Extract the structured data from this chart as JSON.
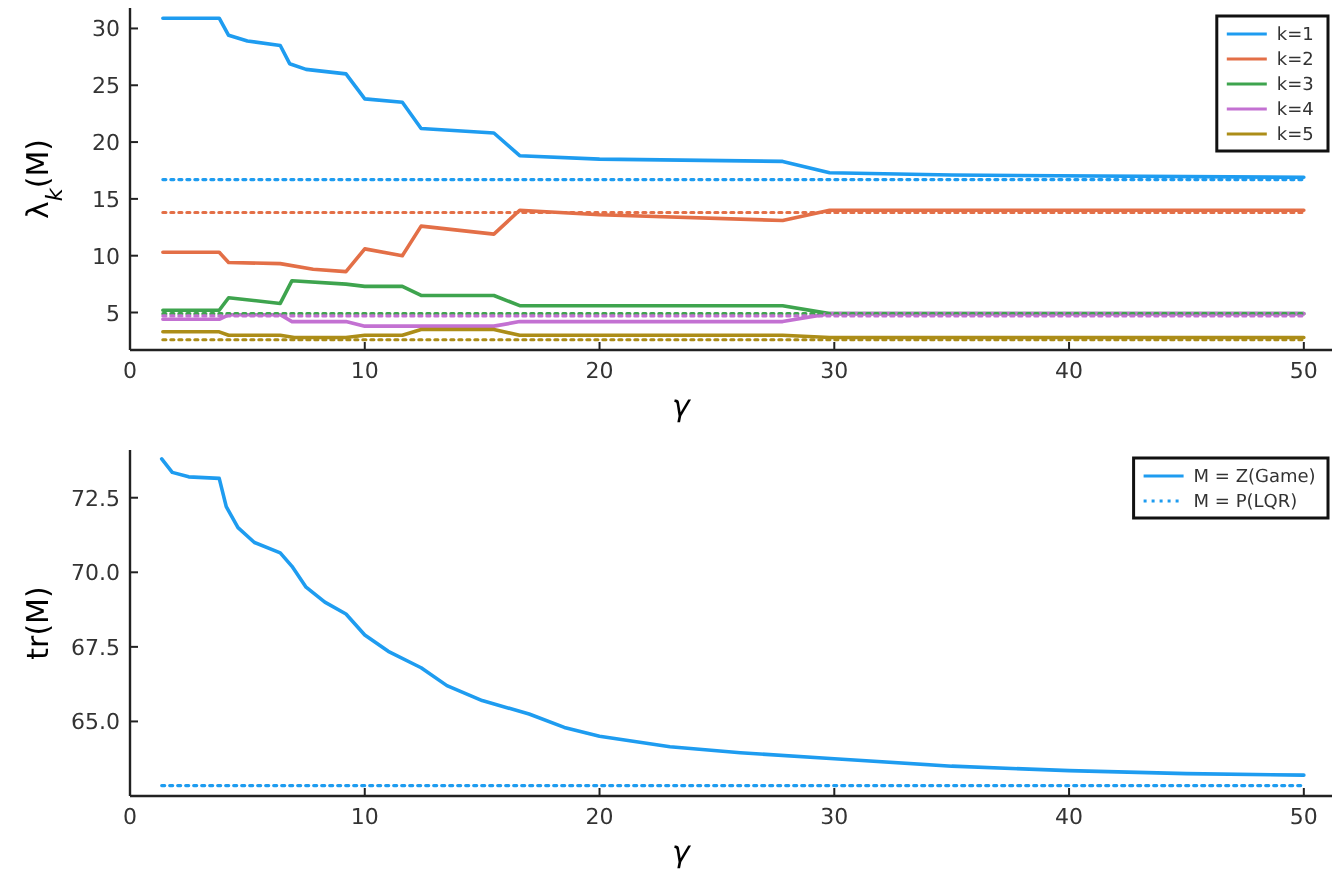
{
  "chart_data": [
    {
      "type": "line",
      "xlabel": "γ",
      "ylabel": "λ$_{k}$(M)",
      "xlim": [
        0,
        51.2
      ],
      "xticks": [
        0,
        10,
        20,
        30,
        40,
        50
      ],
      "ylim": [
        1.7,
        31.8
      ],
      "yticks": [
        5,
        10,
        15,
        20,
        25,
        30
      ],
      "grid": false,
      "legend": "top right",
      "series": [
        {
          "name": "k=1",
          "color": "#1e9cf0",
          "x": [
            1.4,
            3.8,
            4.2,
            5,
            6.4,
            6.8,
            7.5,
            9.2,
            10,
            11.6,
            12.4,
            15.5,
            16.6,
            20,
            27.8,
            29.8,
            35,
            50
          ],
          "values": [
            30.9,
            30.9,
            29.4,
            28.9,
            28.5,
            26.9,
            26.4,
            26.0,
            23.8,
            23.5,
            21.2,
            20.8,
            18.8,
            18.5,
            18.3,
            17.3,
            17.1,
            16.9
          ]
        },
        {
          "name": "k=2",
          "color": "#e36f47",
          "x": [
            1.4,
            3.8,
            4.2,
            6.4,
            7.8,
            9.2,
            10,
            11.6,
            12.4,
            15.5,
            16.6,
            20,
            27.8,
            29.8,
            50
          ],
          "values": [
            10.3,
            10.3,
            9.4,
            9.3,
            8.8,
            8.6,
            10.6,
            10.0,
            12.6,
            11.9,
            14.0,
            13.6,
            13.1,
            14.0,
            14.0
          ]
        },
        {
          "name": "k=3",
          "color": "#3ea44e",
          "x": [
            1.4,
            3.8,
            4.2,
            6.4,
            6.9,
            9.2,
            10,
            11.6,
            12.4,
            15.5,
            16.6,
            27.8,
            29.8,
            50
          ],
          "values": [
            5.2,
            5.2,
            6.3,
            5.8,
            7.8,
            7.5,
            7.3,
            7.3,
            6.5,
            6.5,
            5.6,
            5.6,
            4.9,
            4.9
          ]
        },
        {
          "name": "k=4",
          "color": "#c371d2",
          "x": [
            1.4,
            3.8,
            4.2,
            6.4,
            6.9,
            9.2,
            10,
            15.5,
            16.6,
            27.8,
            29.8,
            50
          ],
          "values": [
            4.4,
            4.4,
            4.8,
            4.8,
            4.2,
            4.2,
            3.8,
            3.8,
            4.2,
            4.2,
            4.9,
            4.9
          ]
        },
        {
          "name": "k=5",
          "color": "#ac8d18",
          "x": [
            1.4,
            3.8,
            4.2,
            6.4,
            7,
            9.2,
            10,
            11.6,
            12.4,
            15.5,
            16.6,
            27.8,
            29.8,
            50
          ],
          "values": [
            3.3,
            3.3,
            3.0,
            3.0,
            2.8,
            2.8,
            3.0,
            3.0,
            3.5,
            3.5,
            3.0,
            3.0,
            2.8,
            2.8
          ]
        },
        {
          "color": "#1e9cf0",
          "line_style": "dotted",
          "x": [
            1.4,
            50
          ],
          "values": [
            16.7,
            16.7
          ]
        },
        {
          "color": "#e36f47",
          "line_style": "dotted",
          "x": [
            1.4,
            50
          ],
          "values": [
            13.8,
            13.8
          ]
        },
        {
          "color": "#3ea44e",
          "line_style": "dotted",
          "x": [
            1.4,
            50
          ],
          "values": [
            4.9,
            4.9
          ]
        },
        {
          "color": "#c371d2",
          "line_style": "dotted",
          "x": [
            1.4,
            50
          ],
          "values": [
            4.7,
            4.7
          ]
        },
        {
          "color": "#ac8d18",
          "line_style": "dotted",
          "x": [
            1.4,
            50
          ],
          "values": [
            2.6,
            2.6
          ]
        }
      ]
    },
    {
      "type": "line",
      "xlabel": "γ",
      "ylabel": "tr(M)",
      "xlim": [
        0,
        51.2
      ],
      "xticks": [
        0,
        10,
        20,
        30,
        40,
        50
      ],
      "ylim": [
        62.5,
        74.1
      ],
      "yticks": [
        {
          "value": 65,
          "label": "65.0"
        },
        {
          "value": 67.5,
          "label": "67.5"
        },
        {
          "value": 70,
          "label": "70.0"
        },
        {
          "value": 72.5,
          "label": "72.5"
        }
      ],
      "grid": false,
      "legend": "top right",
      "series": [
        {
          "name": "M = Z(Game)",
          "color": "#1e9cf0",
          "x": [
            1.35,
            1.8,
            2.5,
            3.8,
            4.1,
            4.6,
            5.3,
            6.4,
            6.9,
            7.5,
            8.3,
            9.2,
            10,
            11,
            12.4,
            13.5,
            15,
            17,
            18.5,
            20,
            23,
            26,
            30,
            35,
            40,
            45,
            50
          ],
          "values": [
            73.8,
            73.35,
            73.2,
            73.15,
            72.2,
            71.5,
            71.0,
            70.65,
            70.2,
            69.5,
            69.0,
            68.6,
            67.9,
            67.35,
            66.8,
            66.2,
            65.7,
            65.25,
            64.8,
            64.5,
            64.15,
            63.95,
            63.75,
            63.5,
            63.35,
            63.25,
            63.2
          ]
        },
        {
          "name": "M = P(LQR)",
          "color": "#1e9cf0",
          "line_style": "dotted",
          "x": [
            1.35,
            50
          ],
          "values": [
            62.85,
            62.85
          ]
        }
      ]
    }
  ]
}
